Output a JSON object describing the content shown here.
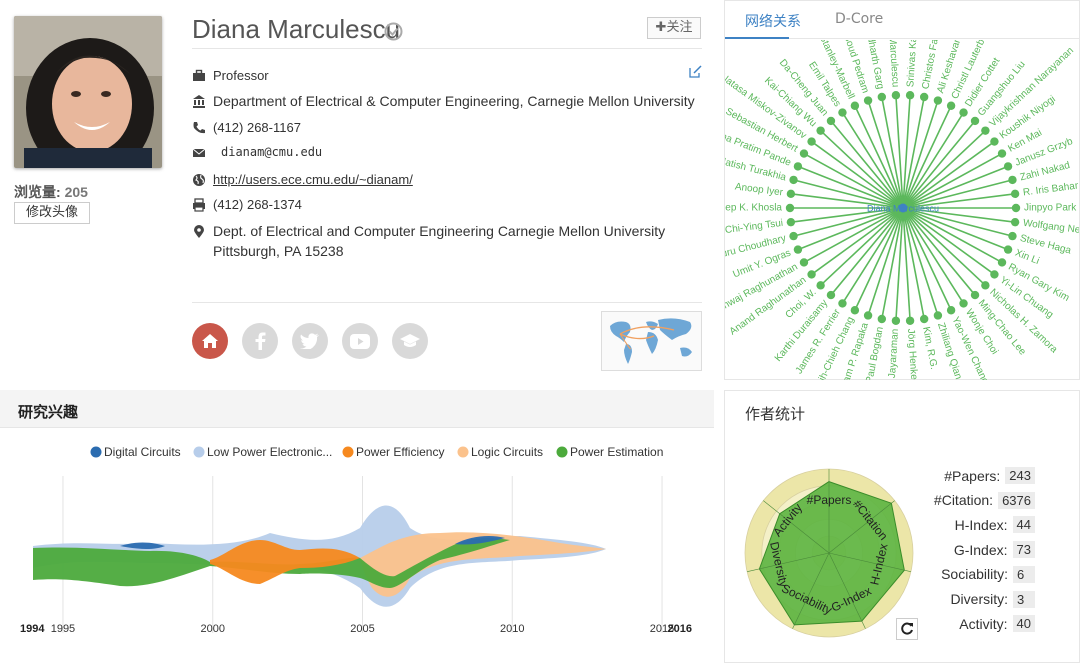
{
  "profile": {
    "name": "Diana Marculescu",
    "follow_label": "✚关注",
    "views_label": "浏览量:",
    "views_count": "205",
    "edit_avatar_label": "修改头像",
    "title": "Professor",
    "department": "Department of  Electrical & Computer Engineering, Carnegie Mellon University",
    "phone": "(412) 268-1167",
    "email": "dianam@cmu.edu",
    "homepage": "http://users.ece.cmu.edu/~dianam/",
    "fax": "(412) 268-1374",
    "address_line1": "Dept. of Electrical and Computer Engineering Carnegie Mellon University",
    "address_line2": "Pittsburgh, PA 15238",
    "social_icons": [
      "home-icon",
      "facebook-icon",
      "twitter-icon",
      "youtube-icon",
      "scholar-icon"
    ]
  },
  "network": {
    "tabs": [
      "网络关系",
      "D-Core"
    ],
    "active_tab": "网络关系",
    "center": "Diana Marculescu",
    "color": "#5cb85c",
    "nodes": [
      "Srinivas Katkoori",
      "Christos Faloutsos",
      "Ali Keshavarzi",
      "Christl Lauterbach",
      "Didier Cottet",
      "Guangshuo Liu",
      "Vijaykrishnan Narayanan",
      "Koushik Niyogi",
      "Ken Mai",
      "Janusz Grzyb",
      "Zahi Nakad",
      "R. Iris Bahar",
      "Jinpyo Park",
      "Wolfgang Neumann",
      "Steve Haga",
      "Xin Li",
      "Ryan Gary Kim",
      "Yi-Lin Chuang",
      "Nicholas H. Zamora",
      "Ming-Chao Lee",
      "Wonje Choi",
      "Yao-Wen Chang",
      "Zhiliang Qian",
      "Kim, R.G.",
      "Jörg Henkel",
      "Ajay Narayan Jayaraman",
      "Paul Bogdan",
      "Jayam P. Rapaka",
      "Shih-Chieh Chang",
      "James R. Ferrier",
      "Karthi Duraisamy",
      "Choi, W.",
      "Anand Raghunathan",
      "Bharathwaj Raghunathan",
      "Umit Y. Ogras",
      "Puru Choudhary",
      "Chi-Ying Tsui",
      "Pradeep K. Khosla",
      "Anoop Iyer",
      "Natish Turakhia",
      "Ina Pratim Pande",
      "Sebastian Herbert",
      "Natasa Miskov-Zivanov",
      "Kai-Chiang Wu",
      "Da-Cheng Juan",
      "Emil Talpes",
      "Philip Stanley-Marbell",
      "Masoud Pedram",
      "Siddharth Garg",
      "Radu Marculescu"
    ]
  },
  "interests": {
    "title": "研究兴趣",
    "chart_data": {
      "type": "area",
      "title": "",
      "series": [
        {
          "name": "Digital Circuits",
          "color": "#2b6cb0"
        },
        {
          "name": "Low Power Electronic...",
          "color": "#b7cdea"
        },
        {
          "name": "Power Efficiency",
          "color": "#f6891f"
        },
        {
          "name": "Logic Circuits",
          "color": "#fbc28c"
        },
        {
          "name": "Power Estimation",
          "color": "#4caa3c"
        }
      ],
      "x_ticks": [
        "1995",
        "2000",
        "2005",
        "2010",
        "2015"
      ],
      "x_range": [
        "1994",
        "2016"
      ]
    }
  },
  "stats": {
    "title": "作者统计",
    "rows": [
      {
        "label": "#Papers:",
        "value": "243"
      },
      {
        "label": "#Citation:",
        "value": "6376"
      },
      {
        "label": "H-Index:",
        "value": "44"
      },
      {
        "label": "G-Index:",
        "value": "73"
      },
      {
        "label": "Sociability:",
        "value": "6"
      },
      {
        "label": "Diversity:",
        "value": "3"
      },
      {
        "label": "Activity:",
        "value": "40"
      }
    ],
    "radar_axes": [
      "#Papers",
      "#Citation",
      "H-Index",
      "G-Index",
      "Sociability",
      "Diversity",
      "Activity"
    ]
  }
}
